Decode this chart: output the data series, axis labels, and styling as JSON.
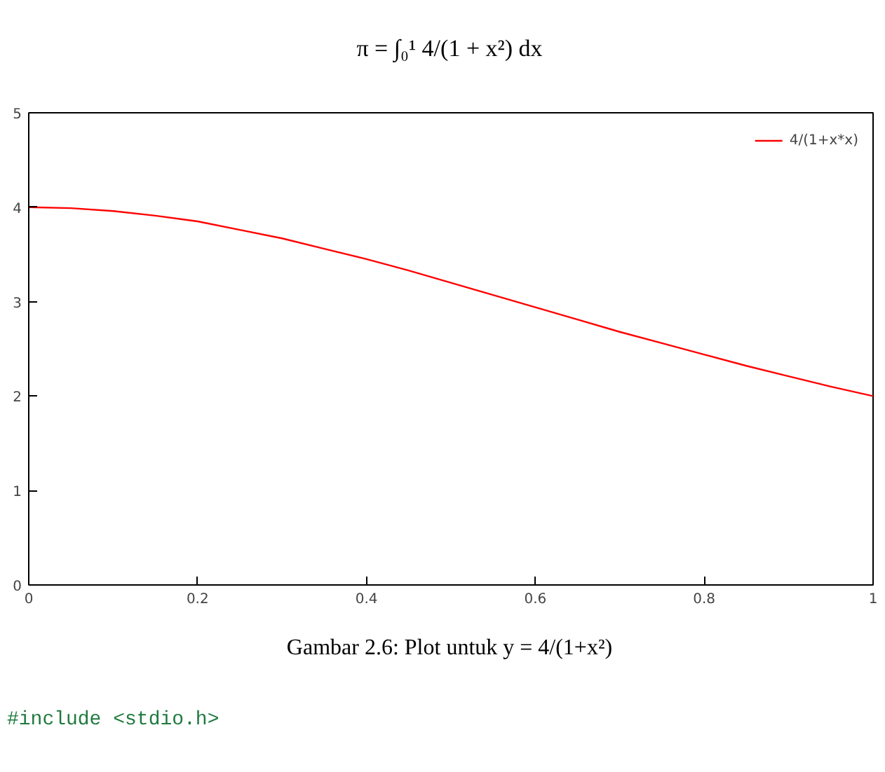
{
  "chart_data": {
    "type": "line",
    "title": "π = ∫₀¹ 4/(1 + x²) dx",
    "annotations": [
      "Gambar 2.6: Plot untuk y = 4/(1+x²)",
      "#include <stdio.h>"
    ],
    "x": [
      0,
      0.05,
      0.1,
      0.15,
      0.2,
      0.25,
      0.3,
      0.35,
      0.4,
      0.45,
      0.5,
      0.55,
      0.6,
      0.65,
      0.7,
      0.75,
      0.8,
      0.85,
      0.9,
      0.95,
      1
    ],
    "series": [
      {
        "name": "4/(1+x*x)",
        "color": "#ff0000",
        "values": [
          4,
          3.99,
          3.96,
          3.91,
          3.85,
          3.76,
          3.67,
          3.56,
          3.45,
          3.33,
          3.2,
          3.07,
          2.94,
          2.81,
          2.68,
          2.56,
          2.44,
          2.32,
          2.21,
          2.1,
          2
        ]
      }
    ],
    "xlim": [
      0,
      1
    ],
    "xticks": [
      0,
      0.2,
      0.4,
      0.6,
      0.8,
      1
    ],
    "ylim": [
      0,
      5
    ],
    "yticks": [
      0,
      1,
      2,
      3,
      4,
      5
    ],
    "grid": false,
    "legend": "top right",
    "marker": "none",
    "line_style": "solid"
  }
}
